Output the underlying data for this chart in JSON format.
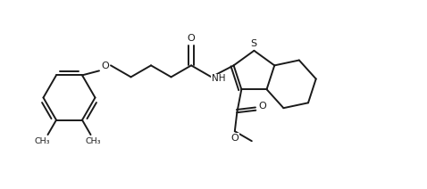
{
  "bg_color": "#ffffff",
  "line_color": "#1a1a1a",
  "bond_width": 1.4,
  "figsize": [
    4.78,
    2.12
  ],
  "dpi": 100,
  "xlim": [
    0,
    9.56
  ],
  "ylim": [
    0,
    4.24
  ]
}
